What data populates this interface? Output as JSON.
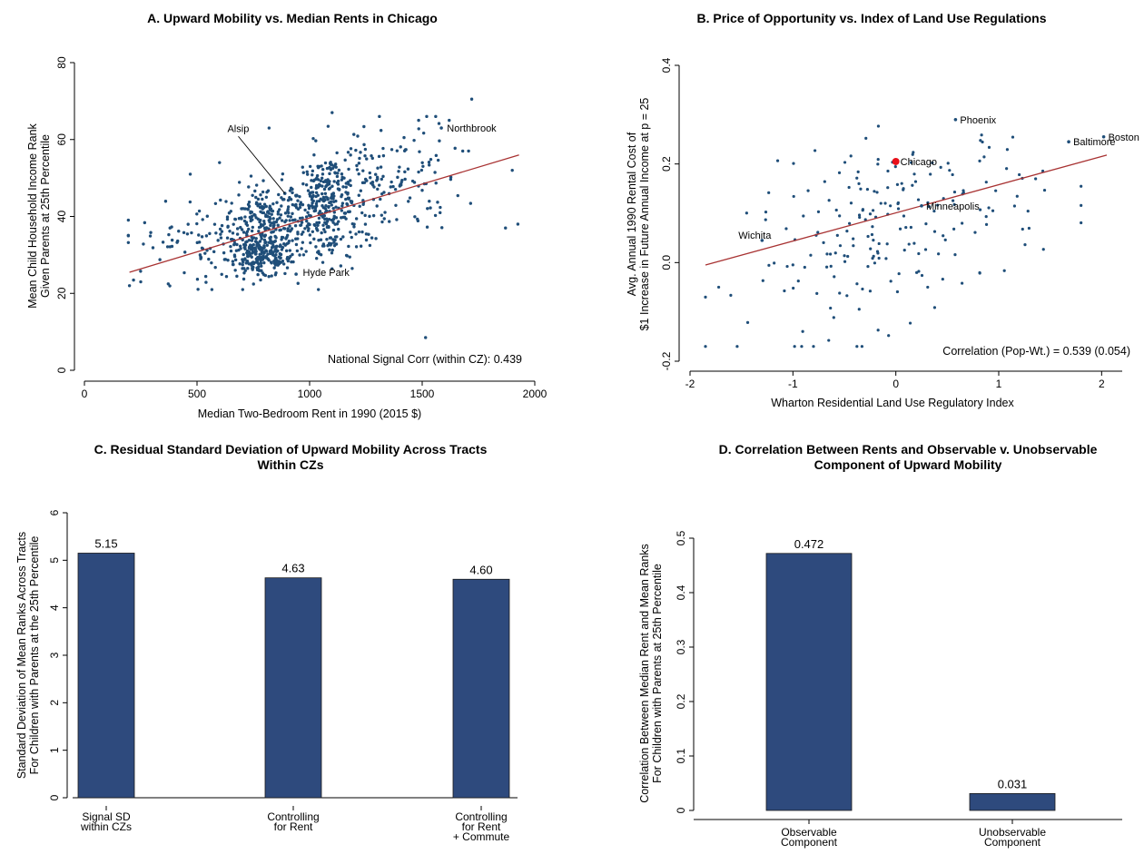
{
  "colors": {
    "dot": "#1f4e79",
    "fit": "#a83232",
    "bar": "#2e4a7d",
    "highlight": "#e8101a"
  },
  "chart_data": [
    {
      "type": "scatter",
      "title": "A. Upward Mobility vs. Median Rents in Chicago",
      "xlabel": "Median Two-Bedroom Rent in 1990 (2015 $)",
      "ylabel": [
        "Mean Child Household Income Rank",
        "Given Parents at 25th Percentile"
      ],
      "xlim": [
        0,
        2000
      ],
      "ylim": [
        0,
        80
      ],
      "xticks": [
        0,
        500,
        1000,
        1500,
        2000
      ],
      "yticks": [
        0,
        20,
        40,
        60,
        80
      ],
      "fit": [
        [
          200,
          25.5
        ],
        [
          1930,
          56
        ]
      ],
      "note": "National Signal Corr (within CZ): 0.439",
      "clusters": [
        {
          "x": 800,
          "y": 38,
          "sx": 95,
          "sy": 5,
          "n": 260
        },
        {
          "x": 780,
          "y": 29,
          "sx": 75,
          "sy": 2.5,
          "n": 180
        },
        {
          "x": 1080,
          "y": 47,
          "sx": 70,
          "sy": 4,
          "n": 150
        },
        {
          "x": 1060,
          "y": 38,
          "sx": 110,
          "sy": 6,
          "n": 190
        },
        {
          "x": 1350,
          "y": 50,
          "sx": 160,
          "sy": 7,
          "n": 140
        },
        {
          "x": 480,
          "y": 33,
          "sx": 170,
          "sy": 5,
          "n": 80
        }
      ],
      "labeled_points": [
        {
          "x": 890,
          "y": 46,
          "label": "Alsip",
          "lx": 635,
          "ly": 62
        },
        {
          "x": 1585,
          "y": 63,
          "label": "Northbrook",
          "lx": 1610,
          "ly": 63
        },
        {
          "x": 940,
          "y": 25,
          "label": "Hyde Park",
          "lx": 970,
          "ly": 25.5
        }
      ],
      "extra_points": [
        [
          1515,
          8.5
        ],
        [
          1720,
          70.5
        ],
        [
          1620,
          65
        ],
        [
          1900,
          52
        ],
        [
          1925,
          38
        ],
        [
          1870,
          37
        ],
        [
          1560,
          66
        ],
        [
          1520,
          66
        ],
        [
          1680,
          57
        ],
        [
          200,
          22
        ],
        [
          250,
          23
        ],
        [
          1100,
          67
        ],
        [
          1310,
          66
        ],
        [
          820,
          63
        ],
        [
          470,
          51
        ],
        [
          600,
          54
        ]
      ]
    },
    {
      "type": "scatter",
      "title": "B. Price of Opportunity vs. Index of Land Use Regulations",
      "xlabel": "Wharton Residential Land Use Regulatory Index",
      "ylabel": [
        "Avg. Annual 1990 Rental Cost of",
        "$1 Increase in Future Annual Income at p = 25"
      ],
      "xlim": [
        -2,
        2.2
      ],
      "ylim": [
        -0.2,
        0.4
      ],
      "xticks": [
        -2,
        -1,
        0,
        1,
        2
      ],
      "yticks": [
        -0.2,
        0,
        0.2,
        0.4
      ],
      "fit": [
        [
          -1.85,
          -0.005
        ],
        [
          2.05,
          0.218
        ]
      ],
      "note": "Correlation (Pop-Wt.) = 0.539 (0.054)",
      "cloud": {
        "cx": 0,
        "cy": 0.07,
        "sx": 0.72,
        "sy": 0.09,
        "slope": 0.057,
        "n": 210
      },
      "labeled_points": [
        {
          "x": 0.0,
          "y": 0.205,
          "label": "Chicago",
          "highlight": true
        },
        {
          "x": 0.58,
          "y": 0.29,
          "label": "Phoenix"
        },
        {
          "x": 1.68,
          "y": 0.245,
          "label": "Baltimore"
        },
        {
          "x": 2.02,
          "y": 0.255,
          "label": "Boston"
        },
        {
          "x": 0.25,
          "y": 0.115,
          "label": "Minneapolis"
        },
        {
          "x": -1.3,
          "y": 0.045,
          "label": "Wichita"
        }
      ]
    },
    {
      "type": "bar",
      "title": [
        "C. Residual Standard Deviation of Upward Mobility Across Tracts",
        "Within CZs"
      ],
      "ylabel": [
        "Standard Deviation of Mean Ranks Across Tracts",
        "For Children with Parents at the 25th Percentile"
      ],
      "ylim": [
        0,
        6
      ],
      "yticks": [
        0,
        1,
        2,
        3,
        4,
        5,
        6
      ],
      "categories": [
        [
          "Signal SD",
          "within CZs"
        ],
        [
          "Controlling",
          "for Rent"
        ],
        [
          "Controlling",
          "for Rent",
          "+ Commute"
        ]
      ],
      "values": [
        5.15,
        4.63,
        4.6
      ],
      "value_labels": [
        "5.15",
        "4.63",
        "4.60"
      ]
    },
    {
      "type": "bar",
      "title": [
        "D. Correlation Between Rents and Observable v. Unobservable",
        "Component of Upward Mobility"
      ],
      "ylabel": [
        "Correlation Between Median Rent and Mean Ranks",
        "For Children with Parents at 25th Percentile"
      ],
      "ylim": [
        0,
        0.5
      ],
      "yticks": [
        0,
        0.1,
        0.2,
        0.3,
        0.4,
        0.5
      ],
      "categories": [
        [
          "Observable",
          "Component"
        ],
        [
          "Unobservable",
          "Component"
        ]
      ],
      "values": [
        0.472,
        0.031
      ],
      "value_labels": [
        "0.472",
        "0.031"
      ]
    }
  ]
}
